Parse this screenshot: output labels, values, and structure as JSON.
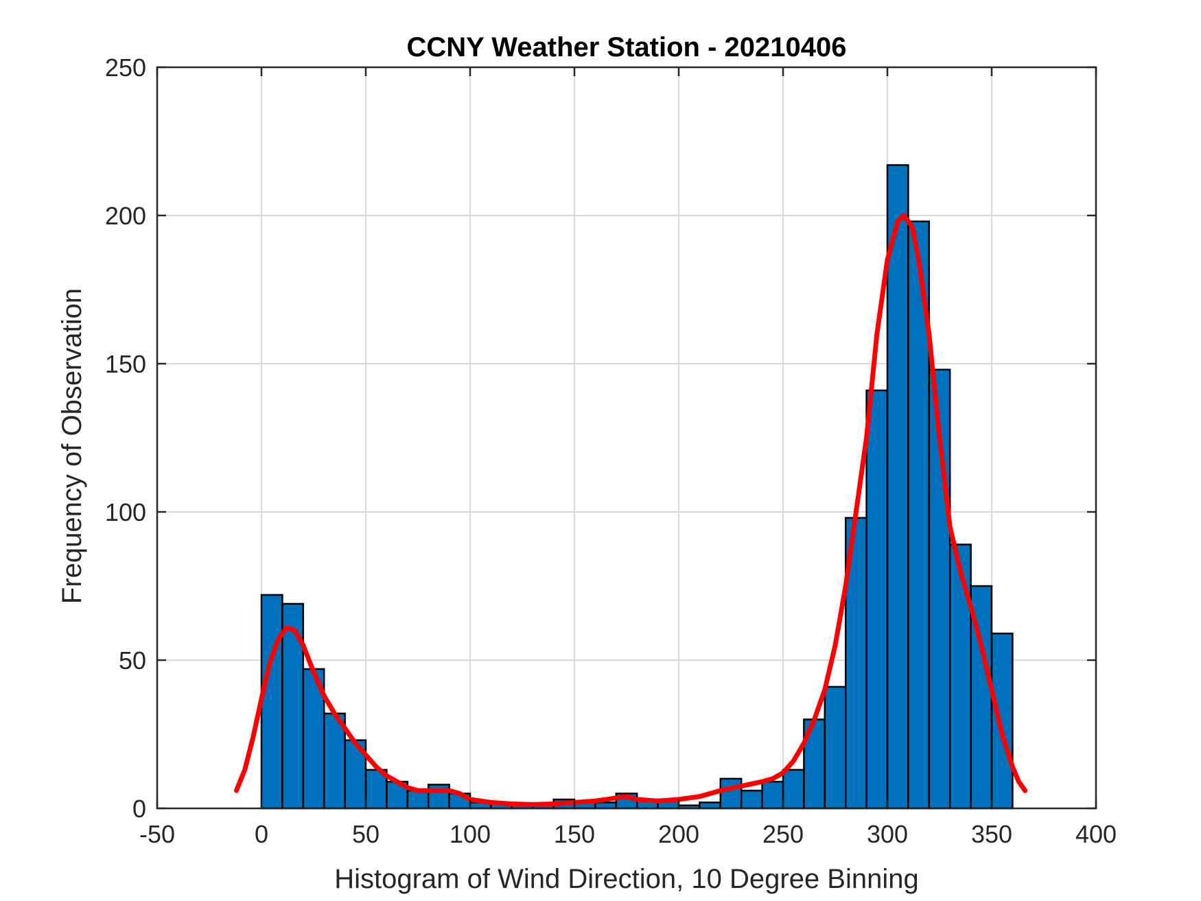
{
  "chart_data": {
    "type": "bar",
    "title": "CCNY Weather Station - 20210406",
    "xlabel": "Histogram of Wind Direction, 10 Degree Binning",
    "ylabel": "Frequency of Observation",
    "xlim": [
      -50,
      400
    ],
    "ylim": [
      0,
      250
    ],
    "xticks": [
      -50,
      0,
      50,
      100,
      150,
      200,
      250,
      300,
      350,
      400
    ],
    "yticks": [
      0,
      50,
      100,
      150,
      200,
      250
    ],
    "grid": true,
    "bin_width": 10,
    "bins": [
      {
        "start": 0,
        "value": 72
      },
      {
        "start": 10,
        "value": 69
      },
      {
        "start": 20,
        "value": 47
      },
      {
        "start": 30,
        "value": 32
      },
      {
        "start": 40,
        "value": 23
      },
      {
        "start": 50,
        "value": 13
      },
      {
        "start": 60,
        "value": 9
      },
      {
        "start": 70,
        "value": 6
      },
      {
        "start": 80,
        "value": 8
      },
      {
        "start": 90,
        "value": 5
      },
      {
        "start": 100,
        "value": 2
      },
      {
        "start": 110,
        "value": 2
      },
      {
        "start": 120,
        "value": 1
      },
      {
        "start": 130,
        "value": 1
      },
      {
        "start": 140,
        "value": 3
      },
      {
        "start": 150,
        "value": 2
      },
      {
        "start": 160,
        "value": 2
      },
      {
        "start": 170,
        "value": 5
      },
      {
        "start": 180,
        "value": 3
      },
      {
        "start": 190,
        "value": 3
      },
      {
        "start": 200,
        "value": 1
      },
      {
        "start": 210,
        "value": 2
      },
      {
        "start": 220,
        "value": 10
      },
      {
        "start": 230,
        "value": 6
      },
      {
        "start": 240,
        "value": 9
      },
      {
        "start": 250,
        "value": 13
      },
      {
        "start": 260,
        "value": 30
      },
      {
        "start": 270,
        "value": 41
      },
      {
        "start": 280,
        "value": 98
      },
      {
        "start": 290,
        "value": 141
      },
      {
        "start": 300,
        "value": 217
      },
      {
        "start": 310,
        "value": 198
      },
      {
        "start": 320,
        "value": 148
      },
      {
        "start": 330,
        "value": 89
      },
      {
        "start": 340,
        "value": 75
      },
      {
        "start": 350,
        "value": 59
      }
    ],
    "fit_curve": {
      "x": [
        -12,
        -8,
        -4,
        0,
        4,
        8,
        12,
        16,
        20,
        25,
        30,
        35,
        40,
        45,
        50,
        55,
        60,
        65,
        70,
        75,
        80,
        85,
        90,
        95,
        100,
        110,
        120,
        130,
        140,
        150,
        160,
        170,
        175,
        180,
        190,
        200,
        210,
        220,
        230,
        240,
        245,
        250,
        255,
        260,
        265,
        270,
        275,
        280,
        285,
        290,
        295,
        300,
        305,
        308,
        312,
        315,
        320,
        325,
        330,
        335,
        340,
        345,
        350,
        355,
        360,
        363,
        366
      ],
      "y": [
        6,
        13,
        24,
        37,
        49,
        57,
        61,
        60,
        55,
        46,
        38,
        32,
        27,
        22,
        18,
        14,
        11,
        9,
        7,
        6,
        6,
        6,
        6,
        5,
        3,
        2,
        1.5,
        1.3,
        1.5,
        2,
        2.5,
        3.5,
        4,
        3,
        2.5,
        3,
        4,
        6,
        7.5,
        9,
        10,
        12,
        16,
        22,
        30,
        40,
        55,
        75,
        100,
        125,
        160,
        185,
        198,
        200,
        196,
        185,
        160,
        125,
        95,
        80,
        68,
        55,
        40,
        25,
        14,
        9,
        6
      ],
      "color": "#ff0000"
    },
    "bar_color": "#0072bd"
  }
}
